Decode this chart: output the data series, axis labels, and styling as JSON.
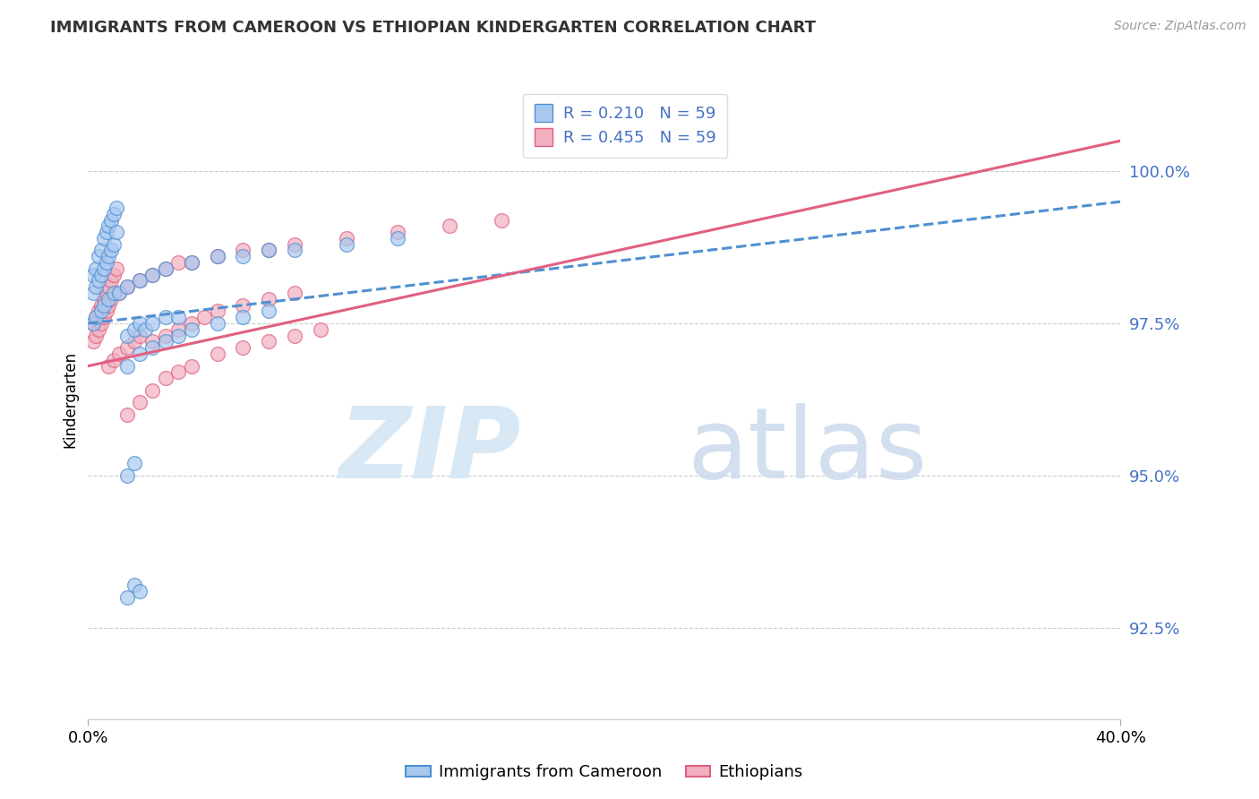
{
  "title": "IMMIGRANTS FROM CAMEROON VS ETHIOPIAN KINDERGARTEN CORRELATION CHART",
  "source": "Source: ZipAtlas.com",
  "ylabel": "Kindergarten",
  "ytick_labels": [
    "92.5%",
    "95.0%",
    "97.5%",
    "100.0%"
  ],
  "ytick_values": [
    92.5,
    95.0,
    97.5,
    100.0
  ],
  "xmin": 0.0,
  "xmax": 40.0,
  "ymin": 91.0,
  "ymax": 101.5,
  "legend_label1": "Immigrants from Cameroon",
  "legend_label2": "Ethiopians",
  "R1": 0.21,
  "R2": 0.455,
  "N1": 59,
  "N2": 59,
  "color_blue_fill": "#A8C8F0",
  "color_pink_fill": "#F0B0C0",
  "color_blue_edge": "#5090D0",
  "color_pink_edge": "#E06080",
  "color_blue_line": "#5090D0",
  "color_pink_line": "#E06080",
  "blue_x": [
    0.2,
    0.3,
    0.4,
    0.5,
    0.6,
    0.7,
    0.8,
    0.9,
    1.0,
    1.1,
    0.2,
    0.3,
    0.4,
    0.5,
    0.6,
    0.7,
    0.8,
    0.9,
    1.0,
    1.1,
    0.2,
    0.3,
    0.5,
    0.6,
    0.8,
    1.0,
    1.2,
    1.5,
    2.0,
    2.5,
    3.0,
    4.0,
    5.0,
    6.0,
    7.0,
    8.0,
    10.0,
    12.0,
    1.5,
    1.8,
    2.0,
    2.2,
    2.5,
    3.0,
    3.5,
    1.5,
    1.8,
    1.5,
    1.8,
    2.0,
    1.5,
    2.0,
    2.5,
    3.0,
    3.5,
    4.0,
    5.0,
    6.0,
    7.0
  ],
  "blue_y": [
    98.3,
    98.4,
    98.6,
    98.7,
    98.9,
    99.0,
    99.1,
    99.2,
    99.3,
    99.4,
    98.0,
    98.1,
    98.2,
    98.3,
    98.4,
    98.5,
    98.6,
    98.7,
    98.8,
    99.0,
    97.5,
    97.6,
    97.7,
    97.8,
    97.9,
    98.0,
    98.0,
    98.1,
    98.2,
    98.3,
    98.4,
    98.5,
    98.6,
    98.6,
    98.7,
    98.7,
    98.8,
    98.9,
    97.3,
    97.4,
    97.5,
    97.4,
    97.5,
    97.6,
    97.6,
    95.0,
    95.2,
    93.0,
    93.2,
    93.1,
    96.8,
    97.0,
    97.1,
    97.2,
    97.3,
    97.4,
    97.5,
    97.6,
    97.7
  ],
  "pink_x": [
    0.2,
    0.3,
    0.4,
    0.5,
    0.6,
    0.7,
    0.8,
    0.9,
    1.0,
    1.1,
    0.2,
    0.3,
    0.4,
    0.5,
    0.6,
    0.7,
    0.8,
    0.9,
    1.2,
    1.5,
    2.0,
    2.5,
    3.0,
    3.5,
    4.0,
    5.0,
    6.0,
    7.0,
    8.0,
    10.0,
    12.0,
    14.0,
    16.0,
    0.8,
    1.0,
    1.2,
    1.5,
    1.8,
    2.0,
    2.5,
    3.0,
    3.5,
    4.0,
    4.5,
    5.0,
    6.0,
    7.0,
    8.0,
    1.5,
    2.0,
    2.5,
    3.0,
    3.5,
    4.0,
    5.0,
    6.0,
    7.0,
    8.0,
    9.0
  ],
  "pink_y": [
    97.5,
    97.6,
    97.7,
    97.8,
    97.9,
    98.0,
    98.1,
    98.2,
    98.3,
    98.4,
    97.2,
    97.3,
    97.4,
    97.5,
    97.6,
    97.7,
    97.8,
    97.9,
    98.0,
    98.1,
    98.2,
    98.3,
    98.4,
    98.5,
    98.5,
    98.6,
    98.7,
    98.7,
    98.8,
    98.9,
    99.0,
    99.1,
    99.2,
    96.8,
    96.9,
    97.0,
    97.1,
    97.2,
    97.3,
    97.2,
    97.3,
    97.4,
    97.5,
    97.6,
    97.7,
    97.8,
    97.9,
    98.0,
    96.0,
    96.2,
    96.4,
    96.6,
    96.7,
    96.8,
    97.0,
    97.1,
    97.2,
    97.3,
    97.4
  ],
  "reg_blue_x0": 0.0,
  "reg_blue_x1": 40.0,
  "reg_blue_y0": 97.5,
  "reg_blue_y1": 99.5,
  "reg_pink_x0": 0.0,
  "reg_pink_x1": 40.0,
  "reg_pink_y0": 96.8,
  "reg_pink_y1": 100.5
}
